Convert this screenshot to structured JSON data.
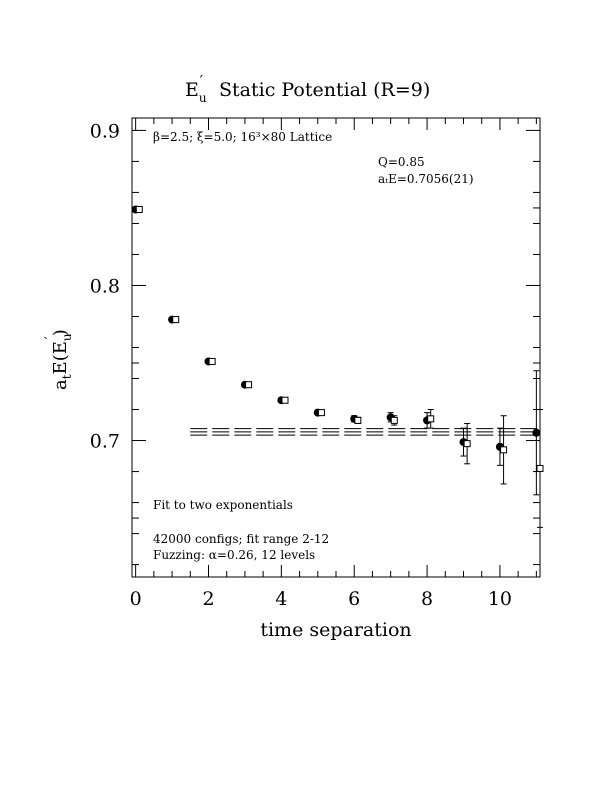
{
  "chart_data": {
    "type": "scatter",
    "title_parts": {
      "symbol": "E",
      "sub": "u",
      "prime": "′",
      "rest": "Static Potential (R=9)"
    },
    "ylabel_parts": {
      "a": "a",
      "a_sub": "t",
      "E": "E(E",
      "E_sub": "u",
      "prime": "′",
      "close": ")"
    },
    "xlabel": "time separation",
    "xlim": [
      -0.1,
      11.1
    ],
    "ylim": [
      0.612,
      0.908
    ],
    "x_ticks": [
      0,
      2,
      4,
      6,
      8,
      10
    ],
    "x_tick_labels": [
      "0",
      "2",
      "4",
      "6",
      "8",
      "10"
    ],
    "y_ticks": [
      0.7,
      0.8,
      0.9
    ],
    "y_tick_labels": [
      "0.7",
      "0.8",
      "0.9"
    ],
    "annotations": {
      "lattice": "β=2.5; ξ=5.0; 16³×80 Lattice",
      "q": "Q=0.85",
      "fit_value": "aₜE=0.7056(21)",
      "fit_label": "Fit to two exponentials",
      "configs": "42000 configs; fit range 2-12",
      "fuzzing": "Fuzzing: α=0.26, 12 levels"
    },
    "series": [
      {
        "marker": "filled-circle",
        "x": [
          0,
          1,
          2,
          3,
          4,
          5,
          6,
          7,
          8,
          9,
          10,
          11
        ],
        "values": [
          0.849,
          0.778,
          0.751,
          0.736,
          0.726,
          0.718,
          0.714,
          0.715,
          0.713,
          0.699,
          0.696,
          0.705
        ],
        "errors": [
          0.0005,
          0.001,
          0.001,
          0.001,
          0.0015,
          0.0015,
          0.002,
          0.003,
          0.005,
          0.009,
          0.012,
          0.04
        ]
      },
      {
        "marker": "open-square",
        "x": [
          0.1,
          1.1,
          2.1,
          3.1,
          4.1,
          5.1,
          6.1,
          7.1,
          8.1,
          9.1,
          10.1,
          11.1
        ],
        "values": [
          0.849,
          0.778,
          0.751,
          0.736,
          0.726,
          0.718,
          0.713,
          0.713,
          0.714,
          0.698,
          0.694,
          0.682
        ],
        "errors": [
          0.0005,
          0.001,
          0.001,
          0.001,
          0.0015,
          0.0015,
          0.002,
          0.003,
          0.006,
          0.013,
          0.022,
          0.038
        ]
      }
    ],
    "fit": {
      "value": 0.7056,
      "error": 0.0021,
      "x_range": [
        1.5,
        11.1
      ]
    }
  }
}
